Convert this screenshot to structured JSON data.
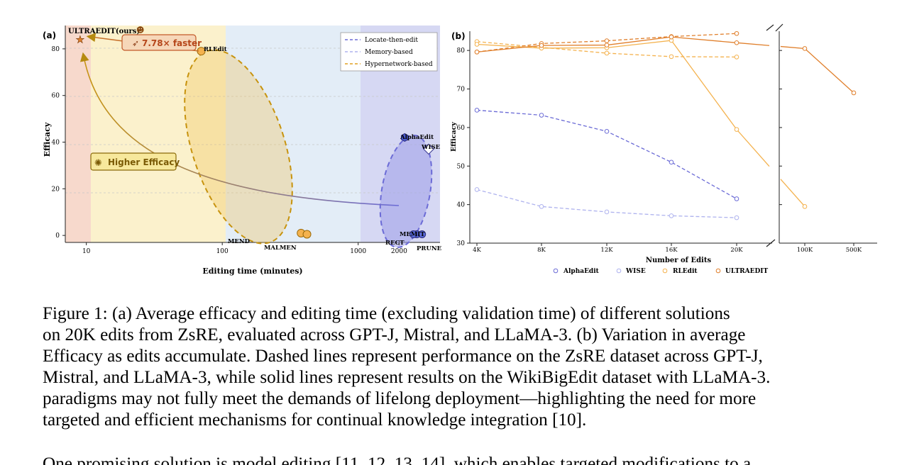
{
  "figure": {
    "panel_a": {
      "label": "(a)",
      "xlabel": "Editing time (minutes)",
      "ylabel": "Efficacy",
      "x_ticks": [
        "10",
        "100",
        "1000",
        "2000"
      ],
      "y_ticks": [
        "0",
        "20",
        "40",
        "60",
        "80"
      ],
      "legend": [
        "Locate-then-edit",
        "Memory-based",
        "Hypernetwork-based"
      ],
      "annotations": {
        "ultraedit": "ULTRAEDIT(ours)",
        "speedup": "7.78× faster",
        "higher_efficacy": "Higher Efficacy"
      },
      "point_labels": [
        "RLEdit",
        "AlphaEdit",
        "WISE",
        "MEND",
        "MALMEN",
        "MEMIT",
        "RECT",
        "PRUNE"
      ]
    },
    "panel_b": {
      "label": "(b)",
      "xlabel": "Number of Edits",
      "ylabel": "Efficacy",
      "x_ticks": [
        "4K",
        "8K",
        "12K",
        "16K",
        "20K",
        "100K",
        "500K"
      ],
      "y_ticks": [
        "30",
        "40",
        "50",
        "60",
        "70",
        "80"
      ],
      "legend": [
        "AlphaEdit",
        "WISE",
        "RLEdit",
        "ULTRAEDIT"
      ]
    }
  },
  "chart_data": [
    {
      "type": "scatter",
      "xlabel": "Editing time (minutes)",
      "ylabel": "Efficacy",
      "x_scale": "log",
      "xlim": [
        7,
        4000
      ],
      "ylim": [
        -3,
        90
      ],
      "legend_position": "top-right",
      "points": [
        {
          "name": "ULTRAEDIT(ours)",
          "x": 9,
          "y": 84,
          "paradigm": "Hypernetwork-based"
        },
        {
          "name": "RLEdit",
          "x": 70,
          "y": 79,
          "paradigm": "Hypernetwork-based"
        },
        {
          "name": "MEND",
          "x": 380,
          "y": 1,
          "paradigm": "Hypernetwork-based"
        },
        {
          "name": "MALMEN",
          "x": 420,
          "y": 0.5,
          "paradigm": "Hypernetwork-based"
        },
        {
          "name": "AlphaEdit",
          "x": 2200,
          "y": 42,
          "paradigm": "Locate-then-edit"
        },
        {
          "name": "WISE",
          "x": 3300,
          "y": 37,
          "paradigm": "Memory-based"
        },
        {
          "name": "MEMIT",
          "x": 2700,
          "y": 0.5,
          "paradigm": "Locate-then-edit"
        },
        {
          "name": "RECT",
          "x": 2550,
          "y": 0.5,
          "paradigm": "Locate-then-edit"
        },
        {
          "name": "PRUNE",
          "x": 2950,
          "y": 0.5,
          "paradigm": "Locate-then-edit"
        }
      ]
    },
    {
      "type": "line",
      "xlabel": "Number of Edits",
      "ylabel": "Efficacy",
      "categories": [
        "4K",
        "8K",
        "12K",
        "16K",
        "20K",
        "100K",
        "500K"
      ],
      "ylim": [
        30,
        85
      ],
      "series": [
        {
          "name": "AlphaEdit",
          "style": "dashed",
          "color": "#6b6bd6",
          "values": [
            64.5,
            63.2,
            59.0,
            51.0,
            41.5,
            null,
            null
          ]
        },
        {
          "name": "WISE",
          "style": "dashed",
          "color": "#aeb2ee",
          "values": [
            43.9,
            39.5,
            38.1,
            37.1,
            36.6,
            null,
            null
          ]
        },
        {
          "name": "RLEdit",
          "style": "dashed",
          "color": "#f4b24e",
          "values": [
            82.3,
            80.8,
            79.3,
            78.4,
            78.3,
            null,
            null
          ]
        },
        {
          "name": "ULTRAEDIT",
          "style": "dashed",
          "color": "#e07f2b",
          "values": [
            79.6,
            81.8,
            82.5,
            83.6,
            84.4,
            null,
            null
          ]
        },
        {
          "name": "RLEdit",
          "style": "solid",
          "color": "#f4b24e",
          "values": [
            81.6,
            80.6,
            80.7,
            82.6,
            59.5,
            39.5,
            null
          ]
        },
        {
          "name": "ULTRAEDIT",
          "style": "solid",
          "color": "#e07f2b",
          "values": [
            79.6,
            81.3,
            81.4,
            83.5,
            82.0,
            80.5,
            69.0
          ]
        }
      ]
    }
  ],
  "caption": {
    "lines": [
      "Figure 1: (a) Average efficacy and editing time (excluding validation time) of different solutions",
      "on 20K edits from ZsRE, evaluated across GPT-J, Mistral, and LLaMA-3. (b) Variation in average",
      "Efficacy as edits accumulate. Dashed lines represent performance on the ZsRE dataset across GPT-J,",
      "Mistral, and LLaMA-3, while solid lines represent results on the WikiBigEdit dataset with LLaMA-3."
    ]
  },
  "body": {
    "lines": [
      "paradigms may not fully meet the demands of lifelong deployment—highlighting the need for more",
      "targeted and efficient mechanisms for continual knowledge integration [10].",
      "One promising solution is model editing [11, 12, 13, 14], which enables targeted modifications to a"
    ]
  },
  "colors": {
    "locate": "#6b6bd6",
    "memory": "#aeb2ee",
    "hyper": "#e0a020",
    "ultra": "#e07f2b",
    "rledit": "#f4b24e"
  }
}
